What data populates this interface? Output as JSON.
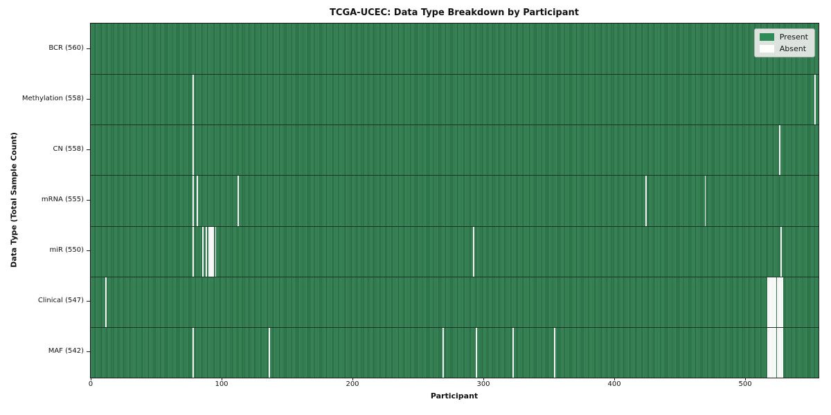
{
  "title": "TCGA-UCEC: Data Type Breakdown by Participant",
  "axes": {
    "xlabel": "Participant",
    "ylabel": "Data Type (Total Sample Count)",
    "x_ticks": [
      0,
      100,
      200,
      300,
      400,
      500
    ]
  },
  "legend": {
    "position": "upper-right",
    "entries": [
      {
        "name": "present",
        "label": "Present",
        "color": "#2e8b57"
      },
      {
        "name": "absent",
        "label": "Absent",
        "color": "#ffffff"
      }
    ]
  },
  "colors": {
    "present": "#2e8b57",
    "present_stripe_light": "#3e8a5d",
    "present_stripe_dark": "#20603c",
    "absent": "#ffffff",
    "row_separator": "#1b3325",
    "plot_border": "#1a1a1a",
    "legend_bg": "#e9ebe9",
    "text": "#111111"
  },
  "chart_data": {
    "type": "heatmap",
    "x_max_participants": 556,
    "value_semantics": {
      "1": "Present",
      "0": "Absent"
    },
    "rows": [
      {
        "data_type": "BCR",
        "sample_count": 560,
        "label": "BCR (560)",
        "absent_participants": []
      },
      {
        "data_type": "Methylation",
        "sample_count": 558,
        "label": "Methylation (558)",
        "absent_participants": [
          78,
          553
        ]
      },
      {
        "data_type": "CN",
        "sample_count": 558,
        "label": "CN (558)",
        "absent_participants": [
          78,
          526
        ]
      },
      {
        "data_type": "mRNA",
        "sample_count": 555,
        "label": "mRNA (555)",
        "absent_participants": [
          78,
          81,
          112,
          424,
          469
        ]
      },
      {
        "data_type": "miR",
        "sample_count": 550,
        "label": "miR (550)",
        "absent_participants": [
          78,
          85,
          88,
          90,
          91,
          92,
          93,
          95,
          292,
          527
        ]
      },
      {
        "data_type": "Clinical",
        "sample_count": 547,
        "label": "Clinical (547)",
        "absent_participants": [
          11,
          517,
          518,
          519,
          520,
          521,
          522,
          523,
          524,
          525,
          526,
          527,
          528
        ]
      },
      {
        "data_type": "MAF",
        "sample_count": 542,
        "label": "MAF (542)",
        "absent_participants": [
          78,
          136,
          269,
          294,
          322,
          354,
          517,
          518,
          519,
          520,
          521,
          522,
          523,
          524,
          525,
          526,
          527,
          528
        ]
      }
    ]
  }
}
